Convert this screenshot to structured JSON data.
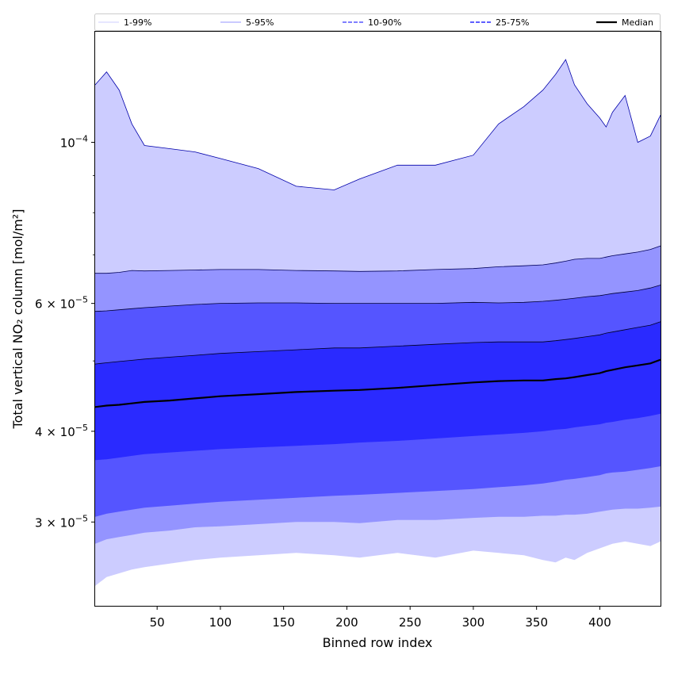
{
  "chart_data": {
    "type": "area",
    "title": "",
    "xlabel": "Binned row index",
    "ylabel": "Total vertical NO₂ column [mol/m²]",
    "yscale": "log",
    "xlim": [
      1,
      448
    ],
    "ylim": [
      2.3e-05,
      0.000142
    ],
    "x_ticks": [
      50,
      100,
      150,
      200,
      250,
      300,
      350,
      400
    ],
    "y_ticks": [
      {
        "value": 0.0001,
        "base": "10",
        "exp": "−4",
        "coef": ""
      },
      {
        "value": 6e-05,
        "base": "10",
        "exp": "−5",
        "coef": "6 × "
      },
      {
        "value": 4e-05,
        "base": "10",
        "exp": "−5",
        "coef": "4 × "
      },
      {
        "value": 3e-05,
        "base": "10",
        "exp": "−5",
        "coef": "3 × "
      }
    ],
    "x": [
      1,
      10,
      20,
      30,
      40,
      60,
      80,
      100,
      130,
      160,
      190,
      210,
      240,
      270,
      300,
      320,
      340,
      355,
      365,
      373,
      380,
      390,
      400,
      405,
      410,
      420,
      430,
      440,
      448
    ],
    "bands": [
      {
        "name": "1-99%",
        "fill": "#ccccff",
        "line": "#0000aa",
        "lower": [
          2.45e-05,
          2.52e-05,
          2.55e-05,
          2.58e-05,
          2.6e-05,
          2.63e-05,
          2.66e-05,
          2.68e-05,
          2.7e-05,
          2.72e-05,
          2.7e-05,
          2.68e-05,
          2.72e-05,
          2.68e-05,
          2.74e-05,
          2.72e-05,
          2.7e-05,
          2.66e-05,
          2.64e-05,
          2.68e-05,
          2.66e-05,
          2.72e-05,
          2.76e-05,
          2.78e-05,
          2.8e-05,
          2.82e-05,
          2.8e-05,
          2.78e-05,
          2.82e-05
        ],
        "upper": [
          0.00012,
          0.000125,
          0.000118,
          0.000106,
          9.9e-05,
          9.8e-05,
          9.7e-05,
          9.5e-05,
          9.2e-05,
          8.7e-05,
          8.6e-05,
          8.9e-05,
          9.3e-05,
          9.3e-05,
          9.6e-05,
          0.000106,
          0.000112,
          0.000118,
          0.000124,
          0.00013,
          0.00012,
          0.000113,
          0.000108,
          0.000105,
          0.00011,
          0.000116,
          0.0001,
          0.000102,
          0.000109
        ]
      },
      {
        "name": "5-95%",
        "fill": "#9494ff",
        "line": "#00005a",
        "lower": [
          2.8e-05,
          2.84e-05,
          2.86e-05,
          2.88e-05,
          2.9e-05,
          2.92e-05,
          2.95e-05,
          2.96e-05,
          2.98e-05,
          3e-05,
          3e-05,
          2.99e-05,
          3.02e-05,
          3.02e-05,
          3.04e-05,
          3.05e-05,
          3.05e-05,
          3.06e-05,
          3.06e-05,
          3.07e-05,
          3.07e-05,
          3.08e-05,
          3.1e-05,
          3.11e-05,
          3.12e-05,
          3.13e-05,
          3.13e-05,
          3.14e-05,
          3.15e-05
        ],
        "upper": [
          6.6e-05,
          6.6e-05,
          6.62e-05,
          6.66e-05,
          6.65e-05,
          6.66e-05,
          6.67e-05,
          6.68e-05,
          6.68e-05,
          6.66e-05,
          6.65e-05,
          6.64e-05,
          6.65e-05,
          6.68e-05,
          6.7e-05,
          6.74e-05,
          6.76e-05,
          6.78e-05,
          6.82e-05,
          6.86e-05,
          6.9e-05,
          6.92e-05,
          6.92e-05,
          6.95e-05,
          6.98e-05,
          7.02e-05,
          7.06e-05,
          7.12e-05,
          7.2e-05
        ]
      },
      {
        "name": "10-90%",
        "fill": "#5555ff",
        "line": "#000033",
        "lower": [
          3.05e-05,
          3.08e-05,
          3.1e-05,
          3.12e-05,
          3.14e-05,
          3.16e-05,
          3.18e-05,
          3.2e-05,
          3.22e-05,
          3.24e-05,
          3.26e-05,
          3.27e-05,
          3.29e-05,
          3.31e-05,
          3.33e-05,
          3.35e-05,
          3.37e-05,
          3.39e-05,
          3.41e-05,
          3.43e-05,
          3.44e-05,
          3.46e-05,
          3.48e-05,
          3.5e-05,
          3.51e-05,
          3.52e-05,
          3.54e-05,
          3.56e-05,
          3.58e-05
        ],
        "upper": [
          5.85e-05,
          5.86e-05,
          5.88e-05,
          5.9e-05,
          5.92e-05,
          5.95e-05,
          5.98e-05,
          6e-05,
          6.01e-05,
          6.01e-05,
          6e-05,
          6e-05,
          6e-05,
          6e-05,
          6.02e-05,
          6.01e-05,
          6.02e-05,
          6.04e-05,
          6.06e-05,
          6.08e-05,
          6.1e-05,
          6.13e-05,
          6.15e-05,
          6.17e-05,
          6.19e-05,
          6.22e-05,
          6.25e-05,
          6.3e-05,
          6.36e-05
        ]
      },
      {
        "name": "25-75%",
        "fill": "#2a2aff",
        "line": "#000022",
        "lower": [
          3.65e-05,
          3.66e-05,
          3.68e-05,
          3.7e-05,
          3.72e-05,
          3.74e-05,
          3.76e-05,
          3.78e-05,
          3.8e-05,
          3.82e-05,
          3.84e-05,
          3.86e-05,
          3.88e-05,
          3.91e-05,
          3.94e-05,
          3.96e-05,
          3.98e-05,
          4e-05,
          4.02e-05,
          4.03e-05,
          4.05e-05,
          4.07e-05,
          4.09e-05,
          4.11e-05,
          4.12e-05,
          4.15e-05,
          4.17e-05,
          4.2e-05,
          4.23e-05
        ],
        "upper": [
          4.95e-05,
          4.97e-05,
          4.99e-05,
          5.01e-05,
          5.03e-05,
          5.06e-05,
          5.09e-05,
          5.12e-05,
          5.15e-05,
          5.18e-05,
          5.21e-05,
          5.21e-05,
          5.24e-05,
          5.27e-05,
          5.3e-05,
          5.31e-05,
          5.31e-05,
          5.31e-05,
          5.33e-05,
          5.35e-05,
          5.37e-05,
          5.4e-05,
          5.43e-05,
          5.46e-05,
          5.48e-05,
          5.52e-05,
          5.56e-05,
          5.6e-05,
          5.66e-05
        ]
      }
    ],
    "median": {
      "name": "Median",
      "color": "#000000",
      "values": [
        4.32e-05,
        4.34e-05,
        4.35e-05,
        4.37e-05,
        4.39e-05,
        4.41e-05,
        4.44e-05,
        4.47e-05,
        4.5e-05,
        4.53e-05,
        4.55e-05,
        4.56e-05,
        4.59e-05,
        4.63e-05,
        4.67e-05,
        4.69e-05,
        4.7e-05,
        4.7e-05,
        4.72e-05,
        4.73e-05,
        4.75e-05,
        4.78e-05,
        4.81e-05,
        4.84e-05,
        4.86e-05,
        4.9e-05,
        4.93e-05,
        4.96e-05,
        5.02e-05
      ]
    },
    "legend": {
      "position": "top",
      "entries": [
        {
          "label": "1-99%",
          "color": "#ccccff",
          "style": "thin"
        },
        {
          "label": "5-95%",
          "color": "#9494ff",
          "style": "thin"
        },
        {
          "label": "10-90%",
          "color": "#5555ff",
          "style": "dashed"
        },
        {
          "label": "25-75%",
          "color": "#2a2aff",
          "style": "dashed"
        },
        {
          "label": "Median",
          "color": "#000000",
          "style": "thick"
        }
      ]
    }
  }
}
